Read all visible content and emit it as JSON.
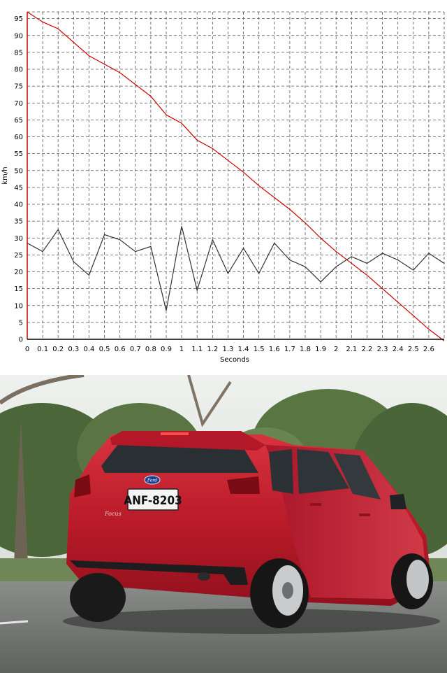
{
  "chart_data": {
    "type": "line",
    "title": "",
    "xlabel": "Seconds",
    "ylabel": "km/h",
    "xlim": [
      0,
      2.7
    ],
    "ylim": [
      0,
      97
    ],
    "grid": true,
    "x_ticks": [
      "0",
      "0.1",
      "0.2",
      "0.3",
      "0.4",
      "0.5",
      "0.6",
      "0.7",
      "0.8",
      "0.9",
      "1",
      "1.1",
      "1.2",
      "1.3",
      "1.4",
      "1.5",
      "1.6",
      "1.7",
      "1.8",
      "1.9",
      "2",
      "2.1",
      "2.2",
      "2.3",
      "2.4",
      "2.5",
      "2.6"
    ],
    "y_ticks": [
      "0",
      "5",
      "10",
      "15",
      "20",
      "25",
      "30",
      "35",
      "40",
      "45",
      "50",
      "55",
      "60",
      "65",
      "70",
      "75",
      "80",
      "85",
      "90",
      "95"
    ],
    "series": [
      {
        "color": "#cc0000",
        "x": [
          0,
          0.1,
          0.2,
          0.3,
          0.4,
          0.5,
          0.6,
          0.7,
          0.8,
          0.9,
          1.0,
          1.1,
          1.2,
          1.3,
          1.4,
          1.5,
          1.6,
          1.7,
          1.8,
          1.9,
          2.0,
          2.1,
          2.2,
          2.3,
          2.4,
          2.5,
          2.6,
          2.7
        ],
        "values": [
          97,
          94,
          92,
          88,
          84,
          81.5,
          79,
          75.5,
          72,
          66.5,
          64,
          59,
          56.5,
          53,
          49.5,
          45.5,
          42,
          38.5,
          34.5,
          30,
          26,
          22.5,
          19,
          15,
          11,
          7,
          3,
          -0.5
        ]
      },
      {
        "color": "#333333",
        "x": [
          0,
          0.1,
          0.2,
          0.3,
          0.4,
          0.5,
          0.6,
          0.7,
          0.8,
          0.9,
          1.0,
          1.1,
          1.2,
          1.3,
          1.4,
          1.5,
          1.6,
          1.7,
          1.8,
          1.9,
          2.0,
          2.1,
          2.2,
          2.3,
          2.4,
          2.5,
          2.6,
          2.7
        ],
        "values": [
          28.5,
          26,
          32.5,
          23,
          19,
          31,
          29.5,
          26,
          27.5,
          8.5,
          33.5,
          14.5,
          29.5,
          19.5,
          27,
          19.5,
          28.5,
          23.5,
          21.5,
          17,
          21.5,
          24.5,
          22.5,
          25.5,
          23.5,
          20.5,
          25.5,
          22.5
        ]
      }
    ]
  },
  "photo": {
    "plate_text": "ANF-8203",
    "badge_text": "Focus",
    "logo_text": "Ford",
    "colors": {
      "car_red": "#c41e2e",
      "sky": "#e7ebe6",
      "trees": "#4f6a3c",
      "road": "#6f7270"
    }
  }
}
